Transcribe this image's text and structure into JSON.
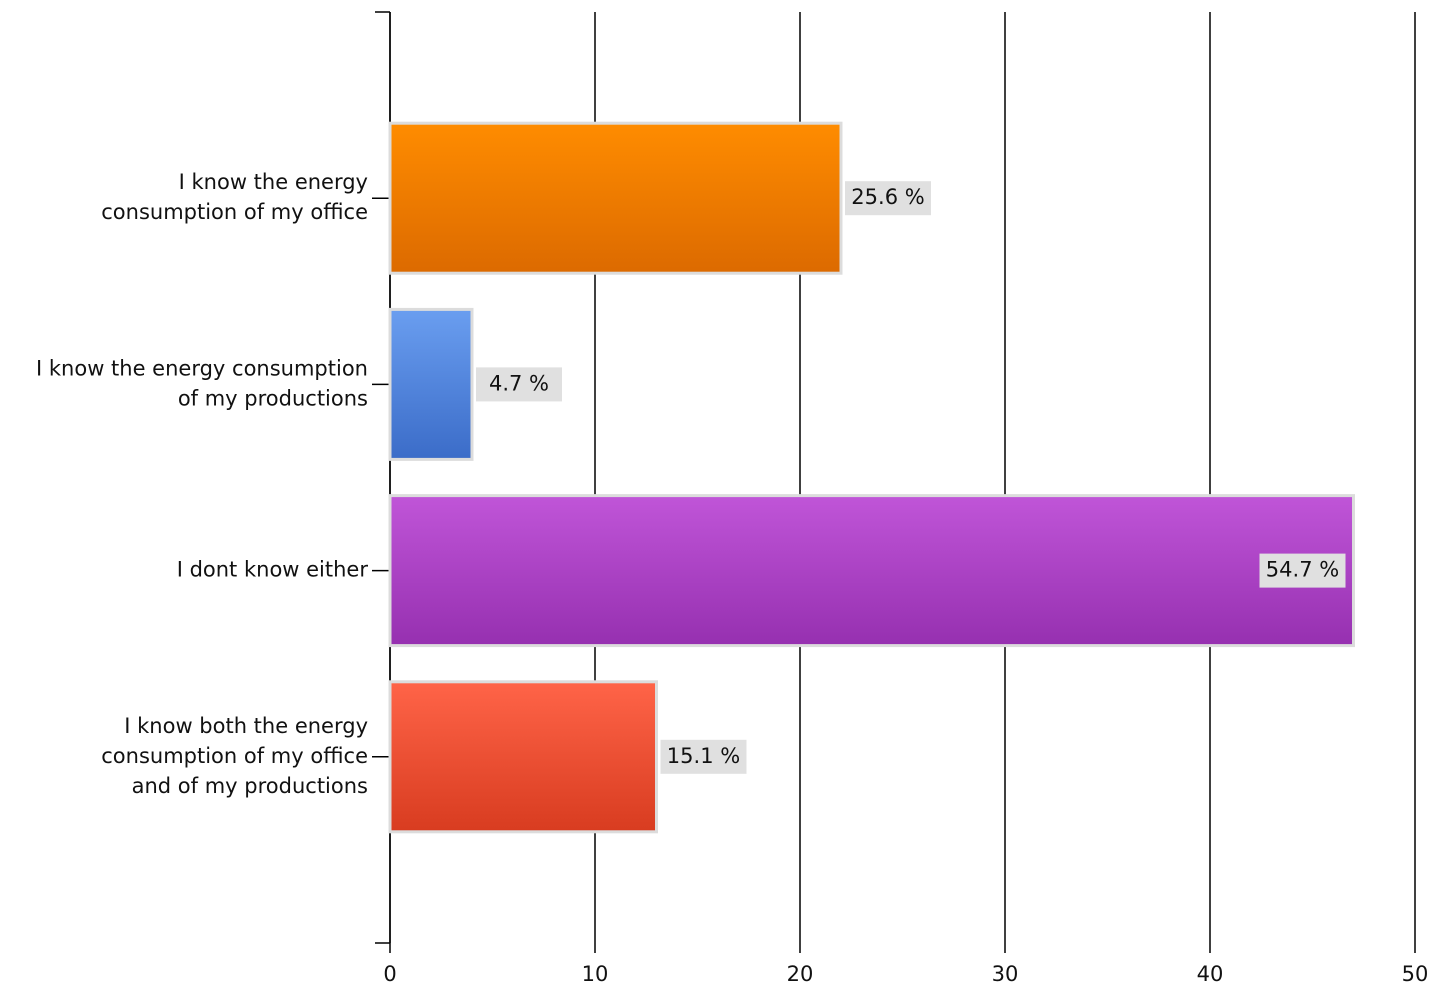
{
  "chart_data": {
    "type": "hbar",
    "categories": [
      [
        "I know the energy",
        "consumption of my office"
      ],
      [
        "I know the energy consumption",
        "of my productions"
      ],
      [
        "I dont know either"
      ],
      [
        "I know both the energy",
        "consumption of my office",
        "and of my productions"
      ]
    ],
    "values": [
      22,
      4,
      47,
      13
    ],
    "bar_labels": [
      "25.6 %",
      "4.7 %",
      "54.7 %",
      "15.1 %"
    ],
    "colors": [
      [
        "#ff8c00",
        "#dc6a00"
      ],
      [
        "#6a9ef0",
        "#3b6cc8"
      ],
      [
        "#c055d8",
        "#9630b0"
      ],
      [
        "#ff6448",
        "#d83c20"
      ]
    ],
    "xlim": [
      0,
      50
    ],
    "xticks": [
      0,
      10,
      20,
      30,
      40,
      50
    ],
    "grid": true
  }
}
